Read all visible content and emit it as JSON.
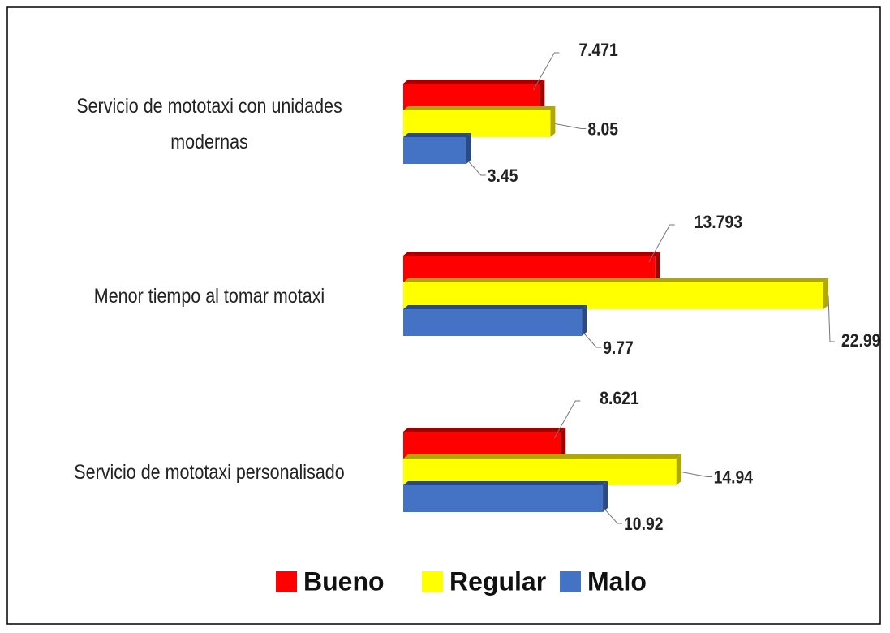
{
  "chart_data": {
    "type": "bar",
    "orientation": "horizontal",
    "categories": [
      "Servicio de mototaxi con unidades modernas",
      "Menor tiempo al tomar motaxi",
      "Servicio de mototaxi personalisado"
    ],
    "series": [
      {
        "name": "Bueno",
        "color": "#ff0000",
        "values": [
          7.471,
          13.793,
          8.621
        ]
      },
      {
        "name": "Regular",
        "color": "#ffff00",
        "values": [
          8.05,
          22.99,
          14.94
        ]
      },
      {
        "name": "Malo",
        "color": "#4472c4",
        "values": [
          3.45,
          9.77,
          10.92
        ]
      }
    ],
    "legend": "bottom"
  }
}
